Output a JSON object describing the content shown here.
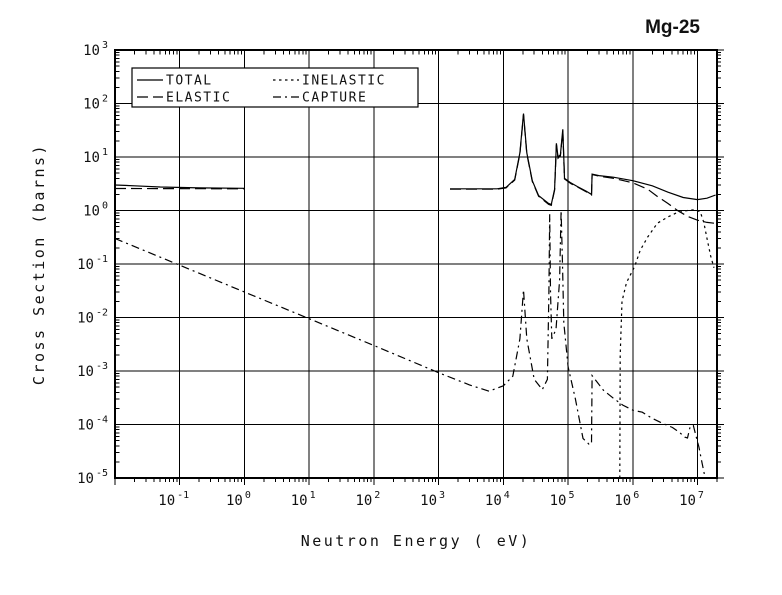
{
  "title": "Mg-25",
  "axes": {
    "x": {
      "label": "Neutron Energy ( eV)",
      "min": 0.01,
      "max": 20000000,
      "tick_mantissa": "10",
      "tick_exponents": [
        "-1",
        "0",
        "1",
        "2",
        "3",
        "4",
        "5",
        "6",
        "7"
      ]
    },
    "y": {
      "label": "Cross Section (barns)",
      "min": 1e-05,
      "max": 1000,
      "tick_mantissa": "10",
      "tick_exponents": [
        "3",
        "2",
        "1",
        "0",
        "-1",
        "-2",
        "-3",
        "-4",
        "-5"
      ]
    }
  },
  "legend": [
    {
      "label": "TOTAL",
      "style": "solid"
    },
    {
      "label": "ELASTIC",
      "style": "dash"
    },
    {
      "label": "INELASTIC",
      "style": "dot"
    },
    {
      "label": "CAPTURE",
      "style": "dashdot"
    }
  ],
  "line_color": "#000000",
  "chart_data": {
    "type": "line",
    "x_scale": "log",
    "y_scale": "log",
    "title": "Mg-25",
    "xlabel": "Neutron Energy ( eV)",
    "ylabel": "Cross Section (barns)",
    "xlim": [
      0.01,
      20000000
    ],
    "ylim": [
      1e-05,
      1000
    ],
    "grid": true,
    "legend_position": "top-left-inside",
    "series": [
      {
        "name": "TOTAL",
        "style": "solid",
        "segments": [
          [
            [
              0.01,
              3.0
            ],
            [
              0.02,
              2.9
            ],
            [
              0.05,
              2.75
            ],
            [
              0.2,
              2.65
            ],
            [
              1.0,
              2.6
            ]
          ],
          [
            [
              1500,
              2.55
            ],
            [
              8000,
              2.55
            ],
            [
              11000,
              2.7
            ],
            [
              15000,
              3.8
            ],
            [
              18000,
              12
            ],
            [
              20500,
              65
            ],
            [
              23000,
              12
            ],
            [
              28000,
              3.6
            ],
            [
              35000,
              1.9
            ],
            [
              50000,
              1.35
            ],
            [
              55000,
              1.3
            ],
            [
              62000,
              2.5
            ],
            [
              66000,
              18
            ],
            [
              70000,
              10
            ],
            [
              76000,
              11
            ],
            [
              83000,
              33
            ],
            [
              88000,
              4.0
            ],
            [
              110000,
              3.3
            ],
            [
              140000,
              2.8
            ],
            [
              190000,
              2.3
            ],
            [
              230000,
              2.0
            ],
            [
              235000,
              4.8
            ],
            [
              300000,
              4.5
            ],
            [
              500000,
              4.2
            ],
            [
              1000000,
              3.6
            ],
            [
              2000000,
              2.9
            ],
            [
              3500000,
              2.2
            ],
            [
              6000000,
              1.75
            ],
            [
              10000000,
              1.6
            ],
            [
              14000000,
              1.7
            ],
            [
              19000000,
              1.95
            ]
          ]
        ]
      },
      {
        "name": "ELASTIC",
        "style": "dash",
        "segments": [
          [
            [
              0.01,
              2.58
            ],
            [
              1.0,
              2.55
            ]
          ],
          [
            [
              1500,
              2.5
            ],
            [
              8000,
              2.5
            ],
            [
              11000,
              2.65
            ],
            [
              15000,
              3.7
            ],
            [
              18000,
              11.5
            ],
            [
              20500,
              62
            ],
            [
              23000,
              11.5
            ],
            [
              28000,
              3.5
            ],
            [
              35000,
              1.85
            ],
            [
              50000,
              1.3
            ],
            [
              55000,
              1.25
            ],
            [
              62000,
              2.4
            ],
            [
              66000,
              17
            ],
            [
              70000,
              9.5
            ],
            [
              76000,
              10.5
            ],
            [
              83000,
              31
            ],
            [
              88000,
              3.9
            ],
            [
              110000,
              3.2
            ],
            [
              140000,
              2.75
            ],
            [
              190000,
              2.25
            ],
            [
              230000,
              1.95
            ],
            [
              235000,
              4.7
            ],
            [
              300000,
              4.4
            ],
            [
              500000,
              4.0
            ],
            [
              1000000,
              3.3
            ],
            [
              1700000,
              2.5
            ],
            [
              2400000,
              1.83
            ],
            [
              3500000,
              1.35
            ],
            [
              4900000,
              1.0
            ],
            [
              7000000,
              0.78
            ],
            [
              10000000,
              0.66
            ],
            [
              14000000,
              0.6
            ],
            [
              18000000,
              0.58
            ]
          ]
        ]
      },
      {
        "name": "INELASTIC",
        "style": "dot",
        "segments": [
          [
            [
              630000,
              1e-05
            ],
            [
              640000,
              0.002
            ],
            [
              680000,
              0.02
            ],
            [
              800000,
              0.045
            ],
            [
              1070000,
              0.09
            ],
            [
              1300000,
              0.18
            ],
            [
              1700000,
              0.32
            ],
            [
              2400000,
              0.58
            ],
            [
              3500000,
              0.76
            ],
            [
              4900000,
              0.92
            ],
            [
              7000000,
              1.0
            ],
            [
              9000000,
              1.03
            ],
            [
              11000000,
              0.95
            ],
            [
              12500000,
              0.6
            ],
            [
              14000000,
              0.3
            ],
            [
              16000000,
              0.14
            ],
            [
              18000000,
              0.085
            ]
          ]
        ]
      },
      {
        "name": "CAPTURE",
        "style": "dashdot",
        "segments": [
          [
            [
              0.01,
              0.3
            ],
            [
              0.1,
              0.095
            ],
            [
              1.0,
              0.03
            ],
            [
              10,
              0.0095
            ],
            [
              100,
              0.003
            ],
            [
              1000,
              0.00093
            ],
            [
              3000,
              0.00055
            ],
            [
              6000,
              0.00042
            ],
            [
              10000,
              0.00053
            ],
            [
              14000,
              0.0008
            ],
            [
              18000,
              0.004
            ],
            [
              20500,
              0.033
            ],
            [
              23000,
              0.004
            ],
            [
              30000,
              0.0007
            ],
            [
              40000,
              0.00045
            ],
            [
              48000,
              0.0007
            ],
            [
              50500,
              0.03
            ],
            [
              52000,
              0.85
            ],
            [
              53500,
              0.03
            ],
            [
              56000,
              0.004
            ],
            [
              65000,
              0.006
            ],
            [
              74000,
              0.05
            ],
            [
              78000,
              1.0
            ],
            [
              82000,
              0.1
            ],
            [
              86000,
              0.008
            ],
            [
              100000,
              0.0012
            ],
            [
              130000,
              0.0003
            ],
            [
              170000,
              5.5e-05
            ],
            [
              210000,
              4.3e-05
            ],
            [
              230000,
              4.3e-05
            ],
            [
              235000,
              0.00082
            ],
            [
              350000,
              0.00044
            ],
            [
              500000,
              0.00031
            ],
            [
              700000,
              0.00023
            ],
            [
              1000000,
              0.000185
            ],
            [
              1400000,
              0.00017
            ],
            [
              2000000,
              0.00013
            ],
            [
              2900000,
              0.000105
            ],
            [
              4100000,
              8.8e-05
            ],
            [
              5200000,
              7.2e-05
            ],
            [
              6400000,
              5.8e-05
            ],
            [
              7000000,
              5.6e-05
            ],
            [
              7700000,
              9.2e-05
            ],
            [
              8600000,
              9.6e-05
            ],
            [
              9500000,
              6e-05
            ],
            [
              10500000,
              3.8e-05
            ],
            [
              11500000,
              2.2e-05
            ],
            [
              13000000,
              1.05e-05
            ]
          ]
        ]
      }
    ]
  }
}
